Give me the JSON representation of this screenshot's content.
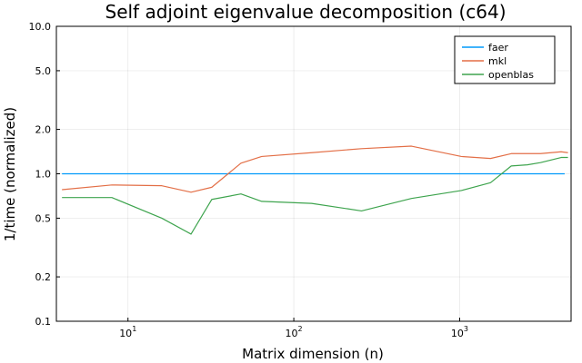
{
  "chart_data": {
    "type": "line",
    "title": "Self adjoint eigenvalue decomposition (c64)",
    "xlabel": "Matrix dimension (n)",
    "ylabel": "1/time (normalized)",
    "xscale": "log",
    "yscale": "log",
    "xlim": [
      3.7,
      4700
    ],
    "ylim": [
      0.1,
      10.0
    ],
    "xticks": [
      {
        "value": 10,
        "base": "10",
        "exp": "1"
      },
      {
        "value": 100,
        "base": "10",
        "exp": "2"
      },
      {
        "value": 1000,
        "base": "10",
        "exp": "3"
      }
    ],
    "yticks": [
      {
        "value": 0.1,
        "label": "0.1"
      },
      {
        "value": 0.2,
        "label": "0.2"
      },
      {
        "value": 0.5,
        "label": "0.5"
      },
      {
        "value": 1.0,
        "label": "1.0"
      },
      {
        "value": 2.0,
        "label": "2.0"
      },
      {
        "value": 5.0,
        "label": "5.0"
      },
      {
        "value": 10.0,
        "label": "10.0"
      }
    ],
    "grid": true,
    "legend_position": "top-right",
    "series": [
      {
        "name": "faer",
        "color": "#009AFA",
        "x": [
          4,
          4300
        ],
        "y": [
          1.0,
          1.0
        ]
      },
      {
        "name": "mkl",
        "color": "#E36F47",
        "x": [
          4,
          8,
          16,
          24,
          32,
          48,
          64,
          128,
          256,
          512,
          1024,
          1536,
          2048,
          3072,
          4096,
          4500
        ],
        "y": [
          0.78,
          0.84,
          0.83,
          0.75,
          0.81,
          1.18,
          1.31,
          1.39,
          1.48,
          1.54,
          1.31,
          1.27,
          1.37,
          1.37,
          1.41,
          1.39
        ]
      },
      {
        "name": "openblas",
        "color": "#3EA44E",
        "x": [
          4,
          8,
          16,
          24,
          32,
          48,
          64,
          128,
          256,
          512,
          1024,
          1536,
          2048,
          2560,
          3072,
          4096,
          4500
        ],
        "y": [
          0.69,
          0.69,
          0.5,
          0.39,
          0.67,
          0.73,
          0.65,
          0.63,
          0.56,
          0.68,
          0.77,
          0.87,
          1.13,
          1.15,
          1.19,
          1.29,
          1.29
        ]
      }
    ]
  }
}
